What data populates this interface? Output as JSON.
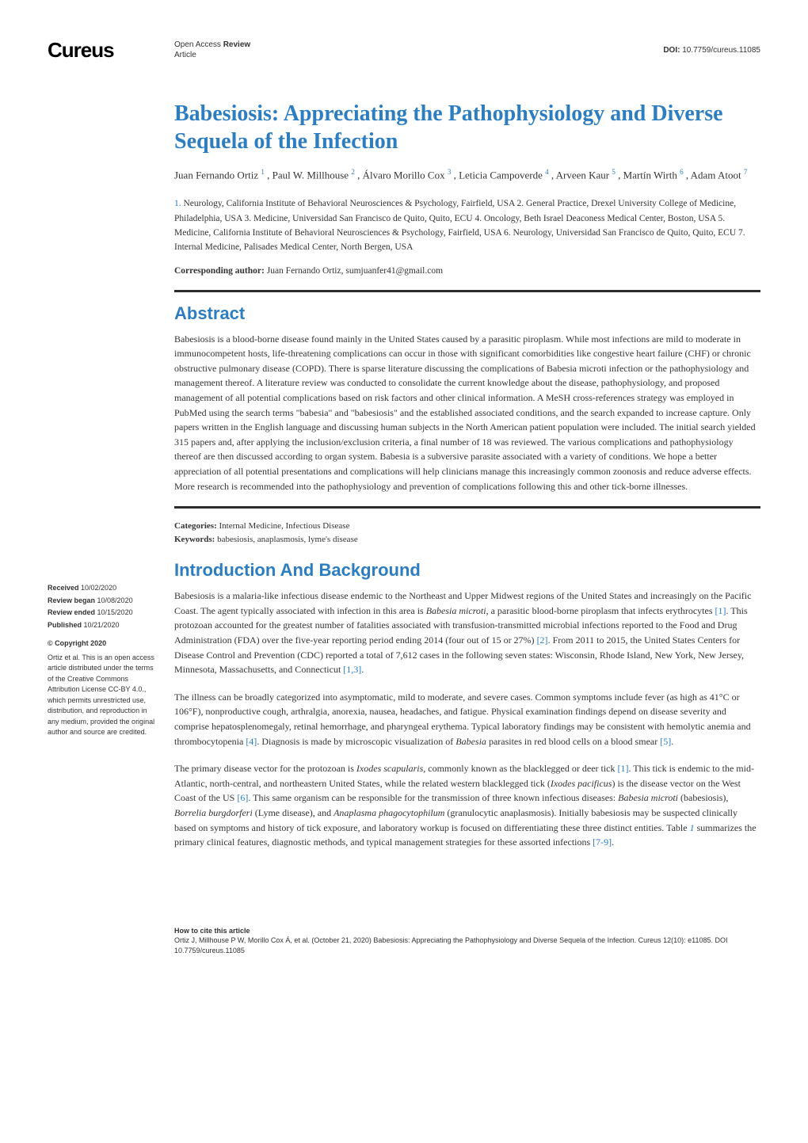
{
  "logo": "Cureus",
  "header": {
    "type_line1": "Open Access",
    "type_line2_bold": "Review",
    "type_line3": "Article",
    "doi_label": "DOI:",
    "doi_value": "10.7759/cureus.11085"
  },
  "title": "Babesiosis: Appreciating the Pathophysiology and Diverse Sequela of the Infection",
  "authors": [
    {
      "name": "Juan Fernando Ortiz",
      "sup": "1"
    },
    {
      "name": "Paul W. Millhouse",
      "sup": "2"
    },
    {
      "name": "Álvaro Morillo Cox",
      "sup": "3"
    },
    {
      "name": "Leticia Campoverde",
      "sup": "4"
    },
    {
      "name": "Arveen Kaur",
      "sup": "5"
    },
    {
      "name": "Martín Wirth",
      "sup": "6"
    },
    {
      "name": "Adam Atoot",
      "sup": "7"
    }
  ],
  "affiliations_text": " Neurology, California Institute of Behavioral Neurosciences & Psychology, Fairfield, USA  2. General Practice, Drexel University College of Medicine, Philadelphia, USA 3. Medicine, Universidad San Francisco de Quito, Quito, ECU  4. Oncology, Beth Israel Deaconess Medical Center, Boston, USA 5. Medicine, California Institute of Behavioral Neurosciences & Psychology, Fairfield, USA 6. Neurology, Universidad San Francisco de Quito, Quito, ECU  7. Internal Medicine, Palisades Medical Center, North Bergen, USA",
  "aff_first_num": "1.",
  "corresponding": {
    "label": "Corresponding author:",
    "text": " Juan Fernando Ortiz, sumjuanfer41@gmail.com"
  },
  "abstract": {
    "heading": "Abstract",
    "text": "Babesiosis is a blood-borne disease found mainly in the United States caused by a parasitic piroplasm. While most infections are mild to moderate in immunocompetent hosts, life-threatening complications can occur in those with significant comorbidities like congestive heart failure (CHF) or chronic obstructive pulmonary disease (COPD). There is sparse literature discussing the complications of Babesia microti infection or the pathophysiology and management thereof. A literature review was conducted to consolidate the current knowledge about the disease, pathophysiology, and proposed management of all potential complications based on risk factors and other clinical information. A MeSH cross-references strategy was employed in PubMed using the search terms \"babesia\" and \"babesiosis\" and the established associated conditions, and the search expanded to increase capture. Only papers written in the English language and discussing human subjects in the North American patient population were included. The initial search yielded 315 papers and, after applying the inclusion/exclusion criteria, a final number of 18 was reviewed. The various complications and pathophysiology thereof are then discussed according to organ system. Babesia is a subversive parasite associated with a variety of conditions. We hope a better appreciation of all potential presentations and complications will help clinicians manage this increasingly common zoonosis and reduce adverse effects. More research is recommended into the pathophysiology and prevention of complications following this and other tick-borne illnesses."
  },
  "meta": {
    "categories_label": "Categories:",
    "categories": " Internal Medicine, Infectious Disease",
    "keywords_label": "Keywords:",
    "keywords": " babesiosis, anaplasmosis, lyme's disease"
  },
  "intro": {
    "heading": "Introduction And Background",
    "p1_a": "Babesiosis is a malaria-like infectious disease endemic to the Northeast and Upper Midwest regions of the United States and increasingly on the Pacific Coast. The agent typically associated with infection in this area is ",
    "p1_ital1": "Babesia microti",
    "p1_b": ", a parasitic blood-borne piroplasm that infects erythrocytes ",
    "p1_cite1": "[1]",
    "p1_c": ". This protozoan accounted for the greatest number of fatalities associated with transfusion-transmitted microbial infections reported to the Food and Drug Administration (FDA) over the five-year reporting period ending 2014 (four out of 15 or 27%) ",
    "p1_cite2": "[2]",
    "p1_d": ". From 2011 to 2015, the United States Centers for Disease Control and Prevention (CDC) reported a total of 7,612 cases in the following seven states: Wisconsin, Rhode Island, New York, New Jersey, Minnesota, Massachusetts, and Connecticut ",
    "p1_cite3": "[1,3]",
    "p1_e": ".",
    "p2_a": "The illness can be broadly categorized into asymptomatic, mild to moderate, and severe cases. Common symptoms include fever (as high as 41°C or 106°F), nonproductive cough, arthralgia, anorexia, nausea, headaches, and fatigue. Physical examination findings depend on disease severity and comprise hepatosplenomegaly, retinal hemorrhage, and pharyngeal erythema. Typical laboratory findings may be consistent with hemolytic anemia and thrombocytopenia ",
    "p2_cite1": "[4]",
    "p2_b": ". Diagnosis is made by microscopic visualization of ",
    "p2_ital1": "Babesia",
    "p2_c": " parasites in red blood cells on a blood smear ",
    "p2_cite2": "[5]",
    "p2_d": ".",
    "p3_a": "The primary disease vector for the protozoan is ",
    "p3_ital1": "Ixodes scapularis",
    "p3_b": ", commonly known as the blacklegged or deer tick ",
    "p3_cite1": "[1]",
    "p3_c": ". This tick is endemic to the mid-Atlantic, north-central, and northeastern United States, while the related western blacklegged tick (",
    "p3_ital2": "Ixodes pacificus",
    "p3_d": ") is the disease vector on the West Coast of the US ",
    "p3_cite2": "[6]",
    "p3_e": ". This same organism can be responsible for the transmission of three known infectious diseases: ",
    "p3_ital3": "Babesia microti",
    "p3_f": " (babesiosis), ",
    "p3_ital4": "Borrelia burgdorferi",
    "p3_g": " (Lyme disease), and ",
    "p3_ital5": "Anaplasma phagocytophilum",
    "p3_h": " (granulocytic anaplasmosis). Initially babesiosis may be suspected clinically based on symptoms and history of tick exposure, and laboratory workup is focused on differentiating these three distinct entities. Table ",
    "p3_tablink": "1",
    "p3_i": " summarizes the primary clinical features, diagnostic methods, and typical management strategies for these assorted infections ",
    "p3_cite3": "[7-9]",
    "p3_j": "."
  },
  "sidebar": {
    "received_label": "Received",
    "received": " 10/02/2020",
    "review_began_label": "Review began",
    "review_began": " 10/08/2020",
    "review_ended_label": "Review ended",
    "review_ended": " 10/15/2020",
    "published_label": "Published",
    "published": " 10/21/2020",
    "copyright_label": "© Copyright",
    "copyright_year": " 2020",
    "license": "Ortiz et al. This is an open access article distributed under the terms of the Creative Commons Attribution License CC-BY 4.0., which permits unrestricted use, distribution, and reproduction in any medium, provided the original author and source are credited."
  },
  "footer": {
    "heading": "How to cite this article",
    "text": "Ortiz J, Millhouse P W, Morillo Cox Á, et al. (October 21, 2020) Babesiosis: Appreciating the Pathophysiology and Diverse Sequela of the Infection. Cureus 12(10): e11085. DOI 10.7759/cureus.11085"
  },
  "colors": {
    "accent": "#2d7dc1",
    "text": "#333333",
    "rule": "#2d2d2d",
    "background": "#ffffff"
  }
}
